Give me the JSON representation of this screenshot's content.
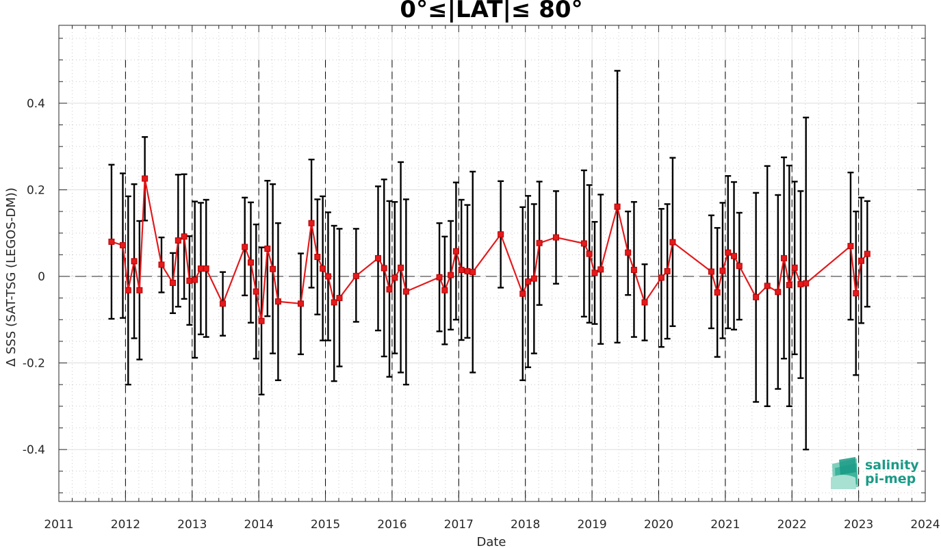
{
  "chart_data": {
    "type": "line",
    "title": "0°≤|LAT|≤ 80°",
    "xlabel": "Date",
    "ylabel": "Δ SSS (SAT-TSG (LEGOS-DM))",
    "xlim": [
      2011,
      2024
    ],
    "ylim": [
      -0.52,
      0.58
    ],
    "x_ticks": [
      "2011",
      "2012",
      "2013",
      "2014",
      "2015",
      "2016",
      "2017",
      "2018",
      "2019",
      "2020",
      "2021",
      "2022",
      "2023",
      "2024"
    ],
    "y_ticks": [
      "0.4",
      "0.2",
      "0",
      "-0.2",
      "-0.4"
    ],
    "y_tick_values": [
      0.4,
      0.2,
      0,
      -0.2,
      -0.4
    ],
    "grid": true,
    "minor_grid": true,
    "year_boundary_lines": true,
    "zero_line": true,
    "series": [
      {
        "color": "#e31a1c",
        "errorbar_color": "#000000",
        "marker": "square",
        "points": [
          {
            "x": 2011.79,
            "y": 0.08,
            "lo": -0.098,
            "hi": 0.258
          },
          {
            "x": 2011.96,
            "y": 0.072,
            "lo": -0.096,
            "hi": 0.238
          },
          {
            "x": 2012.04,
            "y": -0.032,
            "lo": -0.25,
            "hi": 0.185
          },
          {
            "x": 2012.13,
            "y": 0.035,
            "lo": -0.143,
            "hi": 0.213
          },
          {
            "x": 2012.21,
            "y": -0.032,
            "lo": -0.192,
            "hi": 0.128
          },
          {
            "x": 2012.29,
            "y": 0.226,
            "lo": 0.129,
            "hi": 0.322
          },
          {
            "x": 2012.54,
            "y": 0.027,
            "lo": -0.037,
            "hi": 0.09
          },
          {
            "x": 2012.71,
            "y": -0.015,
            "lo": -0.085,
            "hi": 0.054
          },
          {
            "x": 2012.79,
            "y": 0.083,
            "lo": -0.07,
            "hi": 0.235
          },
          {
            "x": 2012.88,
            "y": 0.092,
            "lo": -0.052,
            "hi": 0.236
          },
          {
            "x": 2012.96,
            "y": -0.01,
            "lo": -0.112,
            "hi": 0.093
          },
          {
            "x": 2013.04,
            "y": -0.008,
            "lo": -0.188,
            "hi": 0.173
          },
          {
            "x": 2013.13,
            "y": 0.018,
            "lo": -0.134,
            "hi": 0.17
          },
          {
            "x": 2013.21,
            "y": 0.018,
            "lo": -0.14,
            "hi": 0.177
          },
          {
            "x": 2013.46,
            "y": -0.063,
            "lo": -0.137,
            "hi": 0.01
          },
          {
            "x": 2013.79,
            "y": 0.068,
            "lo": -0.044,
            "hi": 0.182
          },
          {
            "x": 2013.88,
            "y": 0.032,
            "lo": -0.107,
            "hi": 0.171
          },
          {
            "x": 2013.96,
            "y": -0.035,
            "lo": -0.19,
            "hi": 0.12
          },
          {
            "x": 2014.04,
            "y": -0.103,
            "lo": -0.273,
            "hi": 0.067
          },
          {
            "x": 2014.13,
            "y": 0.064,
            "lo": -0.092,
            "hi": 0.221
          },
          {
            "x": 2014.21,
            "y": 0.017,
            "lo": -0.178,
            "hi": 0.213
          },
          {
            "x": 2014.29,
            "y": -0.058,
            "lo": -0.24,
            "hi": 0.123
          },
          {
            "x": 2014.63,
            "y": -0.063,
            "lo": -0.18,
            "hi": 0.053
          },
          {
            "x": 2014.79,
            "y": 0.123,
            "lo": -0.026,
            "hi": 0.27
          },
          {
            "x": 2014.88,
            "y": 0.045,
            "lo": -0.088,
            "hi": 0.178
          },
          {
            "x": 2014.96,
            "y": 0.018,
            "lo": -0.148,
            "hi": 0.185
          },
          {
            "x": 2015.04,
            "y": 0.0,
            "lo": -0.148,
            "hi": 0.148
          },
          {
            "x": 2015.13,
            "y": -0.06,
            "lo": -0.242,
            "hi": 0.117
          },
          {
            "x": 2015.21,
            "y": -0.05,
            "lo": -0.208,
            "hi": 0.11
          },
          {
            "x": 2015.46,
            "y": 0.001,
            "lo": -0.105,
            "hi": 0.11
          },
          {
            "x": 2015.79,
            "y": 0.042,
            "lo": -0.125,
            "hi": 0.208
          },
          {
            "x": 2015.88,
            "y": 0.019,
            "lo": -0.185,
            "hi": 0.224
          },
          {
            "x": 2015.96,
            "y": -0.03,
            "lo": -0.232,
            "hi": 0.174
          },
          {
            "x": 2016.04,
            "y": -0.003,
            "lo": -0.178,
            "hi": 0.172
          },
          {
            "x": 2016.13,
            "y": 0.02,
            "lo": -0.222,
            "hi": 0.264
          },
          {
            "x": 2016.21,
            "y": -0.035,
            "lo": -0.25,
            "hi": 0.178
          },
          {
            "x": 2016.71,
            "y": -0.002,
            "lo": -0.127,
            "hi": 0.123
          },
          {
            "x": 2016.79,
            "y": -0.032,
            "lo": -0.157,
            "hi": 0.092
          },
          {
            "x": 2016.88,
            "y": 0.003,
            "lo": -0.123,
            "hi": 0.128
          },
          {
            "x": 2016.96,
            "y": 0.058,
            "lo": -0.1,
            "hi": 0.217
          },
          {
            "x": 2017.04,
            "y": 0.015,
            "lo": -0.147,
            "hi": 0.177
          },
          {
            "x": 2017.13,
            "y": 0.012,
            "lo": -0.142,
            "hi": 0.165
          },
          {
            "x": 2017.21,
            "y": 0.01,
            "lo": -0.222,
            "hi": 0.242
          },
          {
            "x": 2017.63,
            "y": 0.097,
            "lo": -0.026,
            "hi": 0.22
          },
          {
            "x": 2017.96,
            "y": -0.04,
            "lo": -0.24,
            "hi": 0.16
          },
          {
            "x": 2018.04,
            "y": -0.012,
            "lo": -0.21,
            "hi": 0.186
          },
          {
            "x": 2018.13,
            "y": -0.005,
            "lo": -0.178,
            "hi": 0.167
          },
          {
            "x": 2018.21,
            "y": 0.077,
            "lo": -0.066,
            "hi": 0.219
          },
          {
            "x": 2018.46,
            "y": 0.09,
            "lo": -0.017,
            "hi": 0.197
          },
          {
            "x": 2018.88,
            "y": 0.076,
            "lo": -0.093,
            "hi": 0.245
          },
          {
            "x": 2018.96,
            "y": 0.052,
            "lo": -0.107,
            "hi": 0.211
          },
          {
            "x": 2019.04,
            "y": 0.008,
            "lo": -0.11,
            "hi": 0.126
          },
          {
            "x": 2019.13,
            "y": 0.016,
            "lo": -0.156,
            "hi": 0.189
          },
          {
            "x": 2019.38,
            "y": 0.161,
            "lo": -0.153,
            "hi": 0.475
          },
          {
            "x": 2019.54,
            "y": 0.055,
            "lo": -0.043,
            "hi": 0.15
          },
          {
            "x": 2019.63,
            "y": 0.015,
            "lo": -0.14,
            "hi": 0.172
          },
          {
            "x": 2019.79,
            "y": -0.06,
            "lo": -0.148,
            "hi": 0.028
          },
          {
            "x": 2020.04,
            "y": -0.003,
            "lo": -0.163,
            "hi": 0.156
          },
          {
            "x": 2020.13,
            "y": 0.012,
            "lo": -0.144,
            "hi": 0.167
          },
          {
            "x": 2020.21,
            "y": 0.079,
            "lo": -0.115,
            "hi": 0.274
          },
          {
            "x": 2020.79,
            "y": 0.011,
            "lo": -0.12,
            "hi": 0.141
          },
          {
            "x": 2020.88,
            "y": -0.037,
            "lo": -0.186,
            "hi": 0.112
          },
          {
            "x": 2020.96,
            "y": 0.013,
            "lo": -0.143,
            "hi": 0.17
          },
          {
            "x": 2021.04,
            "y": 0.055,
            "lo": -0.12,
            "hi": 0.232
          },
          {
            "x": 2021.13,
            "y": 0.047,
            "lo": -0.123,
            "hi": 0.218
          },
          {
            "x": 2021.21,
            "y": 0.024,
            "lo": -0.1,
            "hi": 0.147
          },
          {
            "x": 2021.46,
            "y": -0.048,
            "lo": -0.29,
            "hi": 0.193
          },
          {
            "x": 2021.63,
            "y": -0.022,
            "lo": -0.3,
            "hi": 0.255
          },
          {
            "x": 2021.79,
            "y": -0.036,
            "lo": -0.26,
            "hi": 0.188
          },
          {
            "x": 2021.88,
            "y": 0.042,
            "lo": -0.19,
            "hi": 0.275
          },
          {
            "x": 2021.96,
            "y": -0.02,
            "lo": -0.3,
            "hi": 0.256
          },
          {
            "x": 2022.04,
            "y": 0.02,
            "lo": -0.18,
            "hi": 0.219
          },
          {
            "x": 2022.13,
            "y": -0.018,
            "lo": -0.235,
            "hi": 0.197
          },
          {
            "x": 2022.21,
            "y": -0.016,
            "lo": -0.4,
            "hi": 0.367
          },
          {
            "x": 2022.88,
            "y": 0.07,
            "lo": -0.1,
            "hi": 0.24
          },
          {
            "x": 2022.96,
            "y": -0.039,
            "lo": -0.228,
            "hi": 0.15
          },
          {
            "x": 2023.04,
            "y": 0.036,
            "lo": -0.108,
            "hi": 0.182
          },
          {
            "x": 2023.13,
            "y": 0.052,
            "lo": -0.07,
            "hi": 0.174
          }
        ]
      }
    ]
  },
  "logo": {
    "line1": "salinity",
    "line2": "pi-mep",
    "color": "#1a9a86",
    "icon": "salinity-wave-icon"
  }
}
